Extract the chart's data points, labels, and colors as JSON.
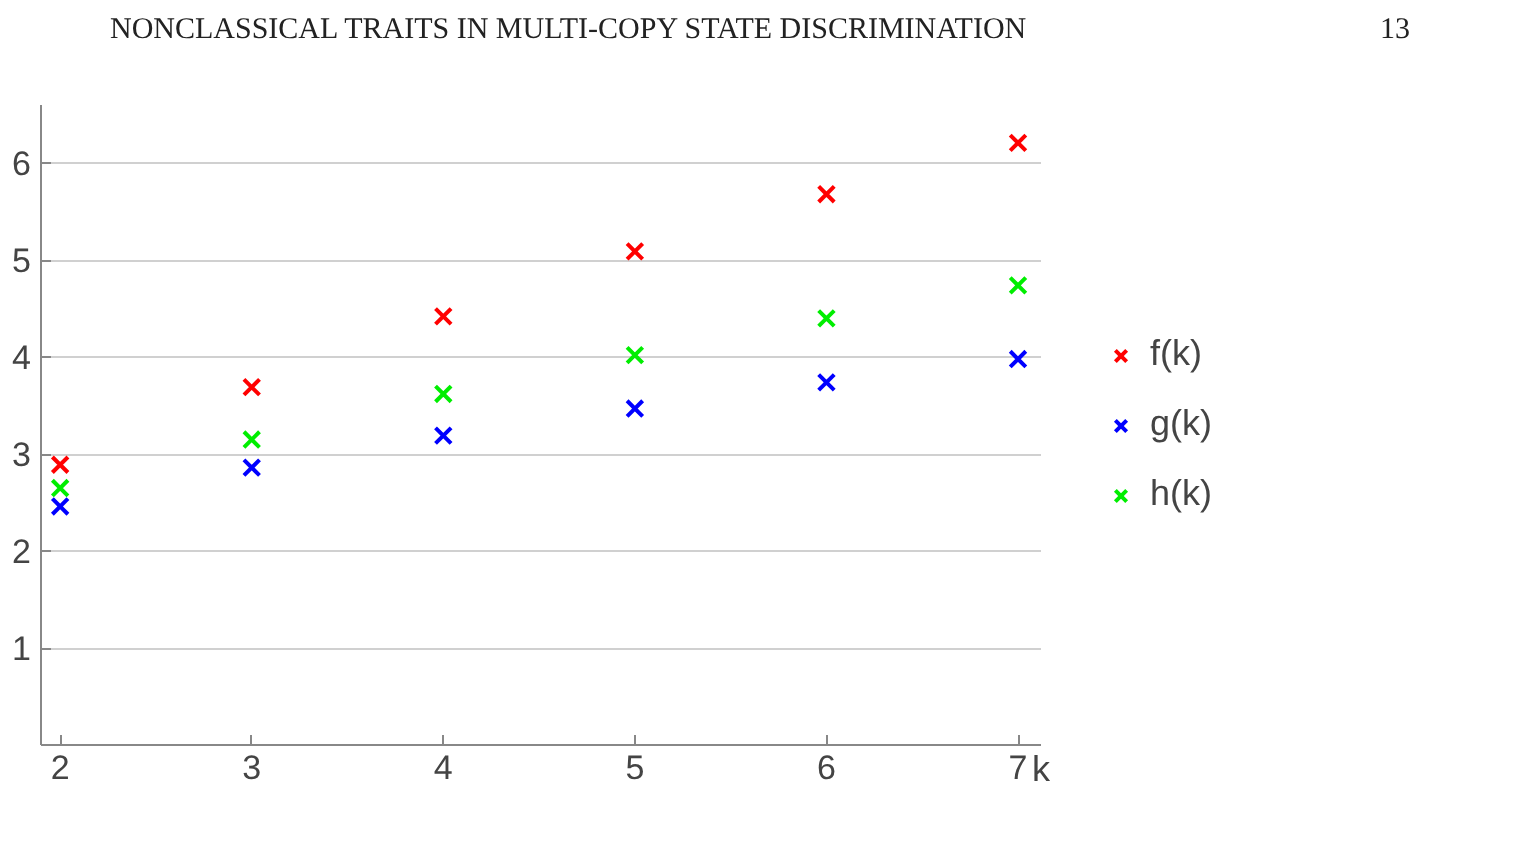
{
  "chart_data": {
    "type": "scatter",
    "xlabel": "k",
    "annotations": [
      "NONCLASSICAL TRAITS IN MULTI-COPY STATE DISCRIMINATION",
      "13"
    ],
    "x": [
      2,
      3,
      4,
      5,
      6,
      7
    ],
    "series": [
      {
        "name": "f(k)",
        "color": "#ff0000",
        "values": [
          2.89,
          3.69,
          4.42,
          5.09,
          5.68,
          6.21
        ]
      },
      {
        "name": "g(k)",
        "color": "#0000ff",
        "values": [
          2.46,
          2.86,
          3.19,
          3.47,
          3.74,
          3.98
        ]
      },
      {
        "name": "h(k)",
        "color": "#00ee00",
        "values": [
          2.65,
          3.15,
          3.62,
          4.02,
          4.4,
          4.74
        ]
      }
    ],
    "xlim": [
      1.9,
      7.12
    ],
    "ylim": [
      0,
      6.6
    ],
    "xticks": [
      2,
      3,
      4,
      5,
      6,
      7
    ],
    "yticks": [
      1,
      2,
      3,
      4,
      5,
      6
    ],
    "grid": "y",
    "legend": "right",
    "marker": "cross"
  }
}
